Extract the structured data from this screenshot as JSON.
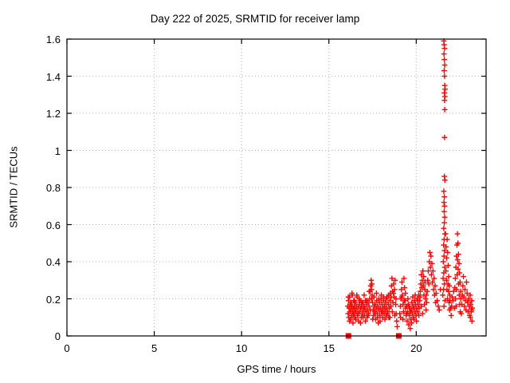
{
  "chart_data": {
    "type": "scatter",
    "title": "Day 222 of 2025, SRMTID for receiver lamp",
    "xlabel": "GPS time / hours",
    "ylabel": "SRMTID / TECUs",
    "xlim": [
      0,
      24
    ],
    "ylim": [
      0,
      1.6
    ],
    "xticks": [
      0,
      5,
      10,
      15,
      20
    ],
    "yticks": [
      0,
      0.2,
      0.4,
      0.6,
      0.8,
      1,
      1.2,
      1.4,
      1.6
    ],
    "grid": true,
    "grid_color": "#b5b5b5",
    "marker": "plus",
    "marker_color": "#ff0000",
    "border_color": "#000000",
    "zero_markers": [
      [
        16.12,
        0
      ],
      [
        19.0,
        0
      ]
    ],
    "points": [
      [
        16.08,
        0.16
      ],
      [
        16.1,
        0.12
      ],
      [
        16.12,
        0.19
      ],
      [
        16.14,
        0.1
      ],
      [
        16.16,
        0.15
      ],
      [
        16.18,
        0.21
      ],
      [
        16.2,
        0.13
      ],
      [
        16.22,
        0.17
      ],
      [
        16.24,
        0.09
      ],
      [
        16.26,
        0.14
      ],
      [
        16.28,
        0.18
      ],
      [
        16.3,
        0.11
      ],
      [
        16.32,
        0.16
      ],
      [
        16.34,
        0.22
      ],
      [
        16.36,
        0.13
      ],
      [
        16.38,
        0.07
      ],
      [
        16.4,
        0.15
      ],
      [
        16.42,
        0.19
      ],
      [
        16.44,
        0.12
      ],
      [
        16.46,
        0.16
      ],
      [
        16.48,
        0.1
      ],
      [
        16.5,
        0.14
      ],
      [
        16.52,
        0.18
      ],
      [
        16.55,
        0.13
      ],
      [
        16.58,
        0.16
      ],
      [
        16.61,
        0.21
      ],
      [
        16.64,
        0.11
      ],
      [
        16.67,
        0.15
      ],
      [
        16.7,
        0.08
      ],
      [
        16.73,
        0.17
      ],
      [
        16.76,
        0.13
      ],
      [
        16.79,
        0.19
      ],
      [
        16.82,
        0.15
      ],
      [
        16.85,
        0.1
      ],
      [
        16.88,
        0.16
      ],
      [
        16.91,
        0.12
      ],
      [
        16.94,
        0.18
      ],
      [
        16.97,
        0.14
      ],
      [
        17.0,
        0.16
      ],
      [
        17.03,
        0.11
      ],
      [
        17.06,
        0.15
      ],
      [
        17.09,
        0.19
      ],
      [
        17.12,
        0.13
      ],
      [
        17.15,
        0.17
      ],
      [
        17.18,
        0.1
      ],
      [
        17.21,
        0.14
      ],
      [
        17.24,
        0.18
      ],
      [
        17.27,
        0.12
      ],
      [
        17.3,
        0.16
      ],
      [
        17.33,
        0.2
      ],
      [
        17.36,
        0.24
      ],
      [
        17.39,
        0.27
      ],
      [
        17.42,
        0.3
      ],
      [
        17.44,
        0.25
      ],
      [
        17.46,
        0.28
      ],
      [
        17.48,
        0.22
      ],
      [
        17.5,
        0.18
      ],
      [
        17.53,
        0.14
      ],
      [
        17.56,
        0.11
      ],
      [
        17.59,
        0.16
      ],
      [
        17.62,
        0.13
      ],
      [
        17.65,
        0.17
      ],
      [
        17.68,
        0.09
      ],
      [
        17.71,
        0.15
      ],
      [
        17.74,
        0.19
      ],
      [
        17.77,
        0.12
      ],
      [
        17.8,
        0.16
      ],
      [
        17.83,
        0.07
      ],
      [
        17.86,
        0.14
      ],
      [
        17.89,
        0.18
      ],
      [
        17.92,
        0.11
      ],
      [
        17.95,
        0.15
      ],
      [
        17.98,
        0.2
      ],
      [
        18.01,
        0.13
      ],
      [
        18.04,
        0.17
      ],
      [
        18.07,
        0.1
      ],
      [
        18.1,
        0.15
      ],
      [
        18.13,
        0.19
      ],
      [
        18.16,
        0.12
      ],
      [
        18.19,
        0.16
      ],
      [
        18.22,
        0.14
      ],
      [
        18.25,
        0.18
      ],
      [
        18.28,
        0.11
      ],
      [
        18.31,
        0.15
      ],
      [
        18.34,
        0.21
      ],
      [
        18.37,
        0.13
      ],
      [
        18.4,
        0.17
      ],
      [
        18.43,
        0.1
      ],
      [
        18.46,
        0.15
      ],
      [
        18.49,
        0.19
      ],
      [
        18.52,
        0.23
      ],
      [
        18.55,
        0.16
      ],
      [
        18.58,
        0.27
      ],
      [
        18.61,
        0.31
      ],
      [
        18.64,
        0.24
      ],
      [
        18.67,
        0.18
      ],
      [
        18.7,
        0.28
      ],
      [
        18.73,
        0.21
      ],
      [
        18.76,
        0.25
      ],
      [
        18.79,
        0.3
      ],
      [
        18.82,
        0.17
      ],
      [
        18.85,
        0.12
      ],
      [
        18.88,
        0.08
      ],
      [
        18.91,
        0.05
      ],
      [
        16.11,
        0.21
      ],
      [
        16.18,
        0.08
      ],
      [
        16.25,
        0.17
      ],
      [
        16.32,
        0.23
      ],
      [
        16.39,
        0.11
      ],
      [
        16.46,
        0.19
      ],
      [
        16.53,
        0.09
      ],
      [
        16.6,
        0.22
      ],
      [
        16.67,
        0.12
      ],
      [
        16.74,
        0.2
      ],
      [
        16.81,
        0.07
      ],
      [
        16.88,
        0.18
      ],
      [
        16.95,
        0.1
      ],
      [
        17.02,
        0.22
      ],
      [
        17.09,
        0.08
      ],
      [
        17.16,
        0.19
      ],
      [
        17.23,
        0.11
      ],
      [
        17.3,
        0.24
      ],
      [
        17.37,
        0.14
      ],
      [
        17.44,
        0.2
      ],
      [
        17.51,
        0.09
      ],
      [
        17.58,
        0.21
      ],
      [
        17.65,
        0.12
      ],
      [
        17.72,
        0.23
      ],
      [
        17.79,
        0.1
      ],
      [
        17.86,
        0.2
      ],
      [
        17.93,
        0.08
      ],
      [
        18.0,
        0.22
      ],
      [
        18.07,
        0.13
      ],
      [
        18.14,
        0.21
      ],
      [
        18.21,
        0.09
      ],
      [
        18.28,
        0.2
      ],
      [
        18.35,
        0.12
      ],
      [
        18.42,
        0.22
      ],
      [
        18.49,
        0.1
      ],
      [
        18.56,
        0.21
      ],
      [
        18.63,
        0.13
      ],
      [
        18.7,
        0.23
      ],
      [
        18.77,
        0.11
      ],
      [
        18.84,
        0.2
      ],
      [
        19.06,
        0.12
      ],
      [
        19.09,
        0.16
      ],
      [
        19.12,
        0.2
      ],
      [
        19.15,
        0.25
      ],
      [
        19.18,
        0.29
      ],
      [
        19.21,
        0.22
      ],
      [
        19.24,
        0.17
      ],
      [
        19.27,
        0.13
      ],
      [
        19.3,
        0.31
      ],
      [
        19.33,
        0.26
      ],
      [
        19.36,
        0.19
      ],
      [
        19.39,
        0.15
      ],
      [
        19.42,
        0.11
      ],
      [
        19.45,
        0.16
      ],
      [
        19.48,
        0.08
      ],
      [
        19.51,
        0.13
      ],
      [
        19.54,
        0.17
      ],
      [
        19.57,
        0.06
      ],
      [
        19.6,
        0.11
      ],
      [
        19.63,
        0.15
      ],
      [
        19.66,
        0.04
      ],
      [
        19.69,
        0.09
      ],
      [
        19.72,
        0.14
      ],
      [
        19.75,
        0.18
      ],
      [
        19.78,
        0.12
      ],
      [
        19.81,
        0.16
      ],
      [
        19.84,
        0.1
      ],
      [
        19.87,
        0.15
      ],
      [
        19.9,
        0.19
      ],
      [
        19.93,
        0.13
      ],
      [
        19.96,
        0.17
      ],
      [
        19.99,
        0.11
      ],
      [
        20.02,
        0.15
      ],
      [
        20.05,
        0.2
      ],
      [
        20.08,
        0.13
      ],
      [
        20.11,
        0.17
      ],
      [
        20.14,
        0.22
      ],
      [
        20.17,
        0.15
      ],
      [
        20.2,
        0.19
      ],
      [
        20.23,
        0.24
      ],
      [
        20.26,
        0.28
      ],
      [
        20.29,
        0.33
      ],
      [
        20.32,
        0.26
      ],
      [
        20.35,
        0.3
      ],
      [
        20.38,
        0.35
      ],
      [
        20.41,
        0.27
      ],
      [
        20.44,
        0.22
      ],
      [
        20.47,
        0.17
      ],
      [
        20.5,
        0.25
      ],
      [
        20.53,
        0.2
      ],
      [
        20.56,
        0.14
      ],
      [
        19.1,
        0.1
      ],
      [
        19.17,
        0.21
      ],
      [
        19.24,
        0.09
      ],
      [
        19.31,
        0.19
      ],
      [
        19.38,
        0.23
      ],
      [
        19.45,
        0.12
      ],
      [
        19.52,
        0.2
      ],
      [
        19.59,
        0.16
      ],
      [
        19.66,
        0.13
      ],
      [
        19.73,
        0.07
      ],
      [
        19.8,
        0.21
      ],
      [
        19.87,
        0.09
      ],
      [
        19.94,
        0.22
      ],
      [
        20.01,
        0.08
      ],
      [
        20.08,
        0.19
      ],
      [
        20.15,
        0.11
      ],
      [
        20.22,
        0.21
      ],
      [
        20.29,
        0.16
      ],
      [
        20.36,
        0.12
      ],
      [
        20.43,
        0.32
      ],
      [
        20.5,
        0.29
      ],
      [
        20.57,
        0.22
      ],
      [
        20.6,
        0.18
      ],
      [
        20.63,
        0.24
      ],
      [
        20.66,
        0.3
      ],
      [
        20.69,
        0.35
      ],
      [
        20.72,
        0.28
      ],
      [
        20.75,
        0.4
      ],
      [
        20.78,
        0.45
      ],
      [
        20.81,
        0.37
      ],
      [
        20.84,
        0.43
      ],
      [
        20.87,
        0.33
      ],
      [
        20.9,
        0.39
      ],
      [
        20.93,
        0.29
      ],
      [
        20.96,
        0.35
      ],
      [
        20.99,
        0.25
      ],
      [
        21.02,
        0.31
      ],
      [
        21.05,
        0.22
      ],
      [
        21.08,
        0.27
      ],
      [
        21.11,
        0.18
      ],
      [
        21.14,
        0.23
      ],
      [
        21.2,
        0.19
      ],
      [
        21.26,
        0.16
      ],
      [
        21.32,
        0.14
      ],
      [
        21.38,
        0.25
      ],
      [
        21.58,
        1.59
      ],
      [
        21.6,
        1.57
      ],
      [
        21.62,
        1.55
      ],
      [
        21.59,
        1.52
      ],
      [
        21.61,
        1.49
      ],
      [
        21.63,
        1.46
      ],
      [
        21.6,
        1.43
      ],
      [
        21.62,
        1.4
      ],
      [
        21.63,
        1.35
      ],
      [
        21.65,
        1.33
      ],
      [
        21.61,
        1.31
      ],
      [
        21.64,
        1.29
      ],
      [
        21.62,
        1.27
      ],
      [
        21.63,
        1.22
      ],
      [
        21.62,
        1.07
      ],
      [
        21.61,
        0.86
      ],
      [
        21.64,
        0.84
      ],
      [
        21.58,
        0.78
      ],
      [
        21.61,
        0.75
      ],
      [
        21.59,
        0.72
      ],
      [
        21.62,
        0.7
      ],
      [
        21.6,
        0.67
      ],
      [
        21.63,
        0.64
      ],
      [
        21.61,
        0.61
      ],
      [
        21.58,
        0.58
      ],
      [
        21.64,
        0.55
      ],
      [
        21.6,
        0.52
      ],
      [
        21.57,
        0.49
      ],
      [
        21.62,
        0.46
      ],
      [
        21.59,
        0.43
      ],
      [
        21.55,
        0.4
      ],
      [
        21.63,
        0.37
      ],
      [
        21.58,
        0.34
      ],
      [
        21.54,
        0.31
      ],
      [
        21.61,
        0.28
      ],
      [
        21.56,
        0.25
      ],
      [
        21.52,
        0.22
      ],
      [
        21.65,
        0.19
      ],
      [
        21.59,
        0.16
      ],
      [
        21.68,
        0.55
      ],
      [
        21.71,
        0.48
      ],
      [
        21.74,
        0.42
      ],
      [
        21.77,
        0.52
      ],
      [
        21.8,
        0.45
      ],
      [
        21.83,
        0.38
      ],
      [
        21.86,
        0.32
      ],
      [
        21.89,
        0.27
      ],
      [
        21.92,
        0.22
      ],
      [
        21.7,
        0.35
      ],
      [
        21.73,
        0.3
      ],
      [
        21.76,
        0.25
      ],
      [
        21.79,
        0.2
      ],
      [
        21.82,
        0.28
      ],
      [
        21.85,
        0.24
      ],
      [
        21.88,
        0.18
      ],
      [
        21.91,
        0.14
      ],
      [
        21.94,
        0.19
      ],
      [
        21.97,
        0.15
      ],
      [
        22.0,
        0.11
      ],
      [
        22.03,
        0.16
      ],
      [
        22.06,
        0.21
      ],
      [
        22.21,
        0.26
      ],
      [
        22.24,
        0.31
      ],
      [
        22.27,
        0.37
      ],
      [
        22.3,
        0.43
      ],
      [
        22.33,
        0.49
      ],
      [
        22.36,
        0.55
      ],
      [
        22.39,
        0.5
      ],
      [
        22.42,
        0.44
      ],
      [
        22.45,
        0.39
      ],
      [
        22.48,
        0.34
      ],
      [
        22.51,
        0.29
      ],
      [
        22.54,
        0.24
      ],
      [
        22.25,
        0.2
      ],
      [
        22.28,
        0.16
      ],
      [
        22.31,
        0.25
      ],
      [
        22.34,
        0.33
      ],
      [
        22.37,
        0.41
      ],
      [
        22.4,
        0.36
      ],
      [
        22.43,
        0.28
      ],
      [
        22.46,
        0.22
      ],
      [
        22.49,
        0.17
      ],
      [
        22.52,
        0.13
      ],
      [
        22.1,
        0.19
      ],
      [
        22.14,
        0.24
      ],
      [
        22.18,
        0.15
      ],
      [
        22.55,
        0.2
      ],
      [
        22.58,
        0.12
      ],
      [
        22.61,
        0.17
      ],
      [
        22.64,
        0.22
      ],
      [
        22.67,
        0.27
      ],
      [
        22.7,
        0.32
      ],
      [
        22.73,
        0.21
      ],
      [
        22.76,
        0.16
      ],
      [
        22.79,
        0.25
      ],
      [
        22.82,
        0.19
      ],
      [
        22.85,
        0.14
      ],
      [
        22.88,
        0.29
      ],
      [
        22.91,
        0.23
      ],
      [
        22.94,
        0.18
      ],
      [
        22.97,
        0.13
      ],
      [
        23.0,
        0.2
      ],
      [
        23.03,
        0.16
      ],
      [
        23.06,
        0.11
      ],
      [
        23.09,
        0.22
      ],
      [
        23.12,
        0.17
      ],
      [
        23.15,
        0.13
      ],
      [
        23.18,
        0.19
      ],
      [
        23.21,
        0.15
      ],
      [
        23.1,
        0.1
      ],
      [
        23.16,
        0.14
      ],
      [
        23.19,
        0.08
      ]
    ]
  }
}
